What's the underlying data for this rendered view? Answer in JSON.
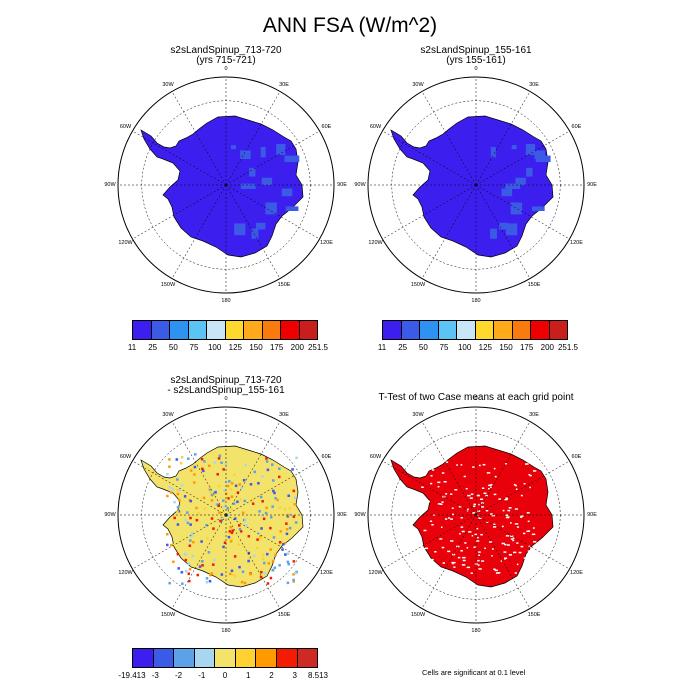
{
  "title": "ANN FSA (W/m^2)",
  "panels": [
    {
      "title1": "s2sLandSpinup_713-720",
      "title2": "(yrs 715-721)",
      "fill": "#3c1fef"
    },
    {
      "title1": "s2sLandSpinup_155-161",
      "title2": "(yrs 155-161)",
      "fill": "#3c1fef"
    },
    {
      "title1": "s2sLandSpinup_713-720",
      "title2": "- s2sLandSpinup_155-161",
      "fill": "#f3e36a"
    },
    {
      "title1": "T-Test of two Case means at each grid point",
      "title2": "",
      "fill": "#e8000b"
    }
  ],
  "lon_labels": [
    "0",
    "30E",
    "60E",
    "90E",
    "120E",
    "150E",
    "180",
    "150W",
    "120W",
    "90W",
    "60W",
    "30W"
  ],
  "colorbar_abs": {
    "labels": [
      "11",
      "25",
      "50",
      "75",
      "100",
      "125",
      "150",
      "175",
      "200",
      "251.5"
    ],
    "colors": [
      "#3c1fef",
      "#3b5ae6",
      "#2e93f0",
      "#5cc4f5",
      "#c8e6f5",
      "#ffd82e",
      "#ffaa1a",
      "#f97a0d",
      "#ee0000",
      "#c81e1e"
    ]
  },
  "colorbar_diff": {
    "labels": [
      "-19.413",
      "-3",
      "-2",
      "-1",
      "0",
      "1",
      "2",
      "3",
      "8.513"
    ],
    "colors": [
      "#3c1fef",
      "#3b5ae6",
      "#5ba2e8",
      "#a8d6f0",
      "#f3e36a",
      "#ffd233",
      "#ff9a00",
      "#f31c00",
      "#cc2a22"
    ]
  },
  "note": "Cells are significant at 0.1 level"
}
